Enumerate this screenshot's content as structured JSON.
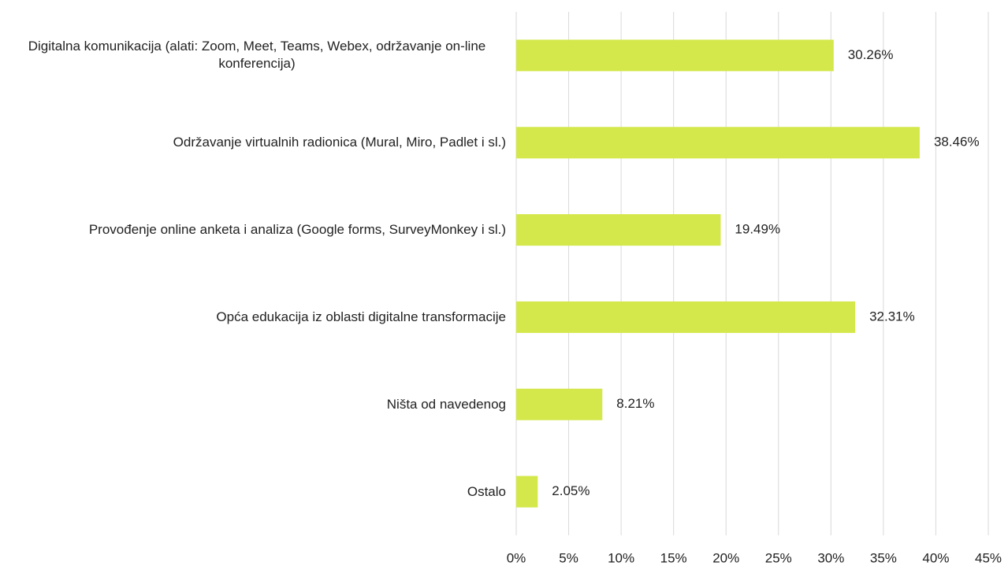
{
  "chart_data": {
    "type": "bar",
    "categories": [
      "Digitalna komunikacija (alati: Zoom, Meet, Teams, Webex, održavanje on-line konferencija)",
      "Održavanje virtualnih radionica (Mural, Miro, Padlet i sl.)",
      "Provođenje online anketa i analiza (Google forms, SurveyMonkey i sl.)",
      "Opća edukacija iz oblasti digitalne transformacije",
      "Ništa od navedenog",
      "Ostalo"
    ],
    "values": [
      30.26,
      38.46,
      19.49,
      32.31,
      8.21,
      2.05
    ],
    "value_labels": [
      "30.26%",
      "38.46%",
      "19.49%",
      "32.31%",
      "8.21%",
      "2.05%"
    ],
    "color": "#d4e84c",
    "xlim": [
      0,
      45
    ],
    "xticks": [
      {
        "value": 0,
        "label": "0%"
      },
      {
        "value": 5,
        "label": "5%"
      },
      {
        "value": 10,
        "label": "10%"
      },
      {
        "value": 15,
        "label": "15%"
      },
      {
        "value": 20,
        "label": "20%"
      },
      {
        "value": 25,
        "label": "25%"
      },
      {
        "value": 30,
        "label": "30%"
      },
      {
        "value": 35,
        "label": "35%"
      },
      {
        "value": 40,
        "label": "40%"
      },
      {
        "value": 45,
        "label": "45%"
      }
    ],
    "grid": true
  }
}
